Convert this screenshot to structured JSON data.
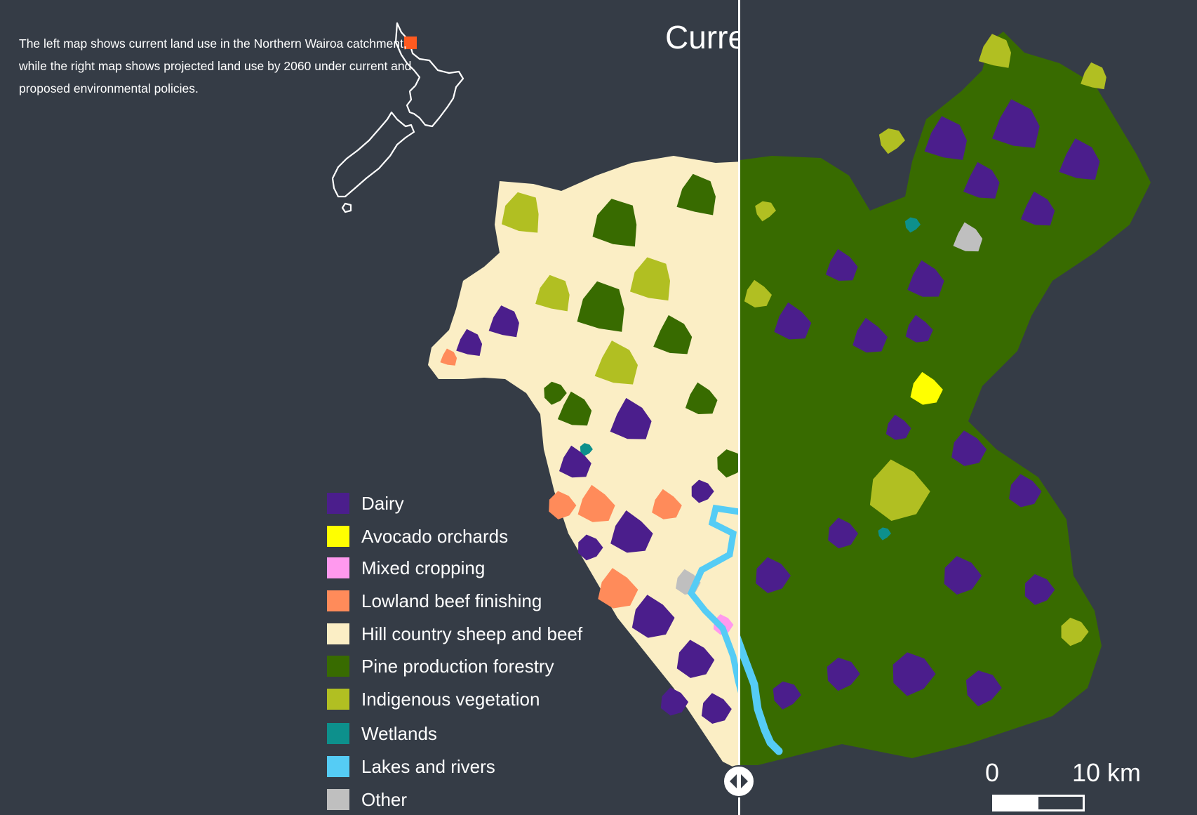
{
  "intro_text": "The left map shows current land use in the Northern Wairoa catchment, while the right map shows projected land use by 2060 under current and proposed environmental policies.",
  "map_title": "Current",
  "legend": {
    "items": [
      {
        "label": "Dairy",
        "color": "#4b1e8c"
      },
      {
        "label": "Avocado orchards",
        "color": "#ffff00"
      },
      {
        "label": "Mixed cropping",
        "color": "#ff99ee"
      },
      {
        "label": "Lowland beef finishing",
        "color": "#ff8b5a"
      },
      {
        "label": "Hill country sheep and beef",
        "color": "#fbeec5"
      },
      {
        "label": "Pine production forestry",
        "color": "#386b00"
      },
      {
        "label": "Indigenous vegetation",
        "color": "#b1bf22"
      },
      {
        "label": "Wetlands",
        "color": "#0d908c"
      },
      {
        "label": "Lakes and rivers",
        "color": "#55ccf5"
      },
      {
        "label": "Other",
        "color": "#bfbfbf"
      }
    ]
  },
  "scale": {
    "start": "0",
    "end": "10 km"
  },
  "locator": {
    "marker_color": "#ff5a1f",
    "region": "Northern Wairoa"
  },
  "colors": {
    "background": "#353c46",
    "water": "#55ccf5",
    "outline": "#ffffff"
  }
}
